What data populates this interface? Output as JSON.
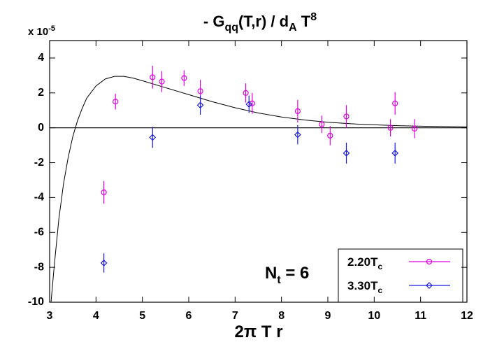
{
  "chart_data": {
    "type": "scatter",
    "title": [
      "- G",
      "qq",
      "(T,r) / d",
      "A",
      " T",
      "8"
    ],
    "y_multiplier": [
      "x 10",
      "-5"
    ],
    "xlabel": "2π T r",
    "annotation": [
      "N",
      "t",
      " = 6"
    ],
    "xlim": [
      3,
      12
    ],
    "ylim": [
      -10,
      5
    ],
    "xticks": [
      3,
      4,
      5,
      6,
      7,
      8,
      9,
      10,
      11,
      12
    ],
    "yticks": [
      -10,
      -8,
      -6,
      -4,
      -2,
      0,
      2,
      4
    ],
    "hline": 0,
    "legend": "lower right",
    "series": [
      {
        "name": [
          "2.20T",
          "c"
        ],
        "color": "#e100e1",
        "marker": "circle",
        "x": [
          4.17,
          4.42,
          5.22,
          5.42,
          5.9,
          6.25,
          7.23,
          7.37,
          8.35,
          8.87,
          9.05,
          9.4,
          10.35,
          10.45,
          10.87
        ],
        "values": [
          -3.7,
          1.5,
          2.9,
          2.65,
          2.85,
          2.1,
          2.0,
          1.4,
          0.95,
          0.2,
          -0.45,
          0.65,
          0.0,
          1.4,
          -0.05
        ],
        "errors": [
          0.65,
          0.45,
          0.65,
          0.6,
          0.45,
          0.65,
          0.55,
          0.6,
          0.65,
          0.5,
          0.55,
          0.65,
          0.5,
          0.65,
          0.55
        ]
      },
      {
        "name": [
          "3.30T",
          "c"
        ],
        "color": "#1a1adf",
        "marker": "diamond",
        "x": [
          4.17,
          5.22,
          6.25,
          7.3,
          8.35,
          9.4,
          10.45
        ],
        "values": [
          -7.75,
          -0.55,
          1.3,
          1.35,
          -0.4,
          -1.45,
          -1.45
        ],
        "errors": [
          0.55,
          0.6,
          0.55,
          0.5,
          0.55,
          0.6,
          0.6
        ]
      }
    ],
    "curve": {
      "color": "#000000",
      "x": [
        3.03,
        3.1,
        3.2,
        3.3,
        3.4,
        3.5,
        3.6,
        3.7,
        3.8,
        4.0,
        4.2,
        4.4,
        4.6,
        4.8,
        5.0,
        5.5,
        6,
        6.5,
        7,
        7.5,
        8,
        8.5,
        9,
        9.5,
        10,
        10.5,
        11,
        11.5,
        12
      ],
      "y": [
        -10,
        -7.9,
        -5.2,
        -3.2,
        -1.7,
        -0.5,
        0.4,
        1.1,
        1.7,
        2.4,
        2.8,
        2.95,
        2.95,
        2.85,
        2.7,
        2.3,
        1.9,
        1.5,
        1.15,
        0.85,
        0.62,
        0.45,
        0.32,
        0.23,
        0.17,
        0.12,
        0.09,
        0.07,
        0.05
      ]
    }
  }
}
